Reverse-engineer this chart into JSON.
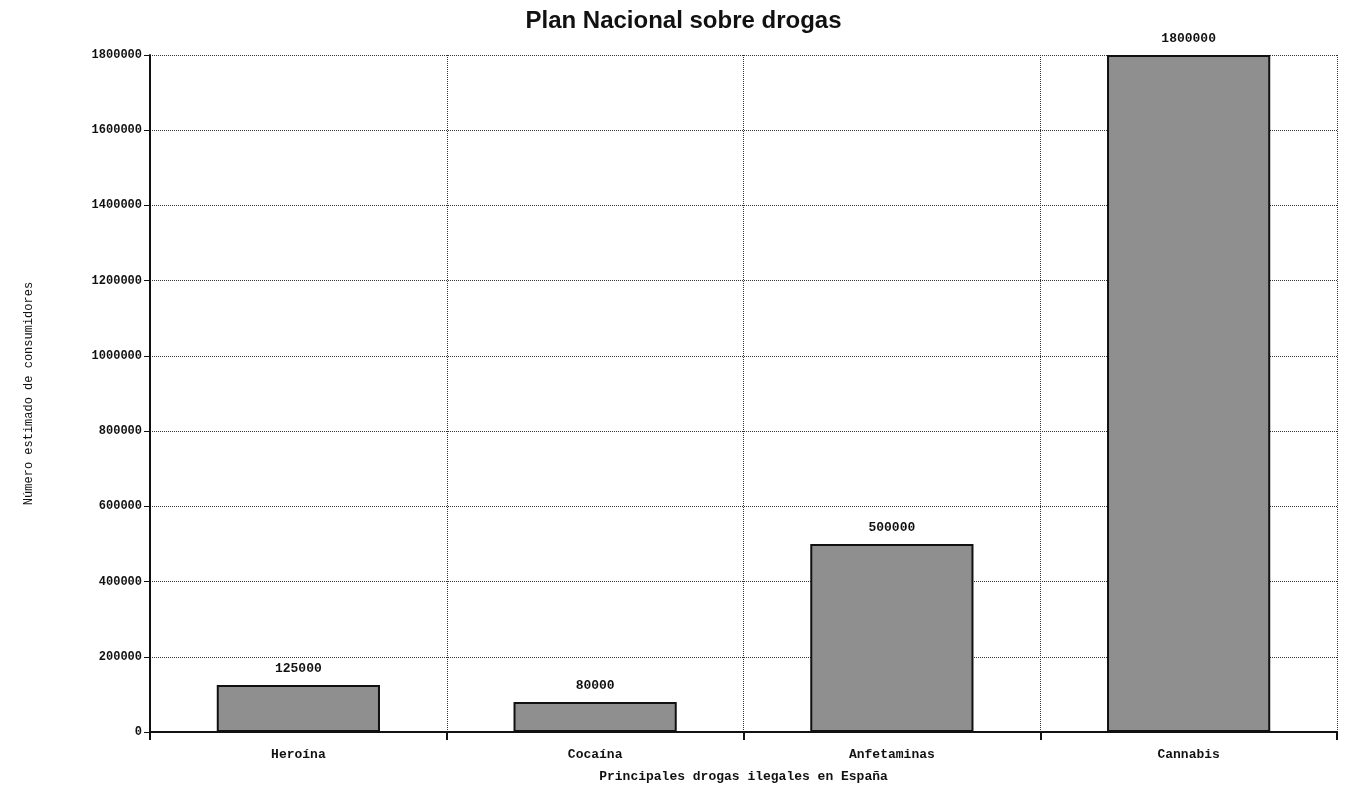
{
  "chart_data": {
    "type": "bar",
    "title": "Plan Nacional sobre drogas",
    "xlabel": "Principales drogas ilegales en España",
    "ylabel": "Número estimado de consumidores",
    "categories": [
      "Heroína",
      "Cocaína",
      "Anfetaminas",
      "Cannabis"
    ],
    "values": [
      125000,
      80000,
      500000,
      1800000
    ],
    "color": "#8f8f8f",
    "data_labels": true,
    "ylim": [
      0,
      1800000
    ],
    "yticks": [
      0,
      200000,
      400000,
      600000,
      800000,
      1000000,
      1200000,
      1400000,
      1600000,
      1800000
    ],
    "grid": true
  }
}
